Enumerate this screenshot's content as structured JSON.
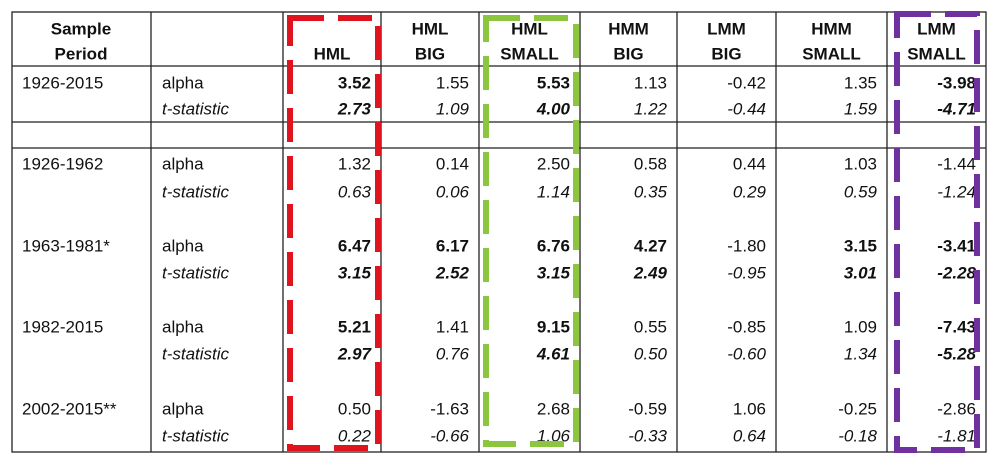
{
  "table": {
    "header": {
      "sample_period": [
        "Sample",
        "Period"
      ],
      "columns": [
        [
          "HML"
        ],
        [
          "HML",
          "BIG"
        ],
        [
          "HML",
          "SMALL"
        ],
        [
          "HMM",
          "BIG"
        ],
        [
          "LMM",
          "BIG"
        ],
        [
          "HMM",
          "SMALL"
        ],
        [
          "LMM",
          "SMALL"
        ]
      ]
    },
    "blocks": [
      {
        "period": "1926-2015",
        "rows": [
          {
            "label": "alpha",
            "values": [
              "3.52",
              "1.55",
              "5.53",
              "1.13",
              "-0.42",
              "1.35",
              "-3.98"
            ],
            "bold": [
              true,
              false,
              true,
              false,
              false,
              false,
              true
            ]
          },
          {
            "label": "t-statistic",
            "values": [
              "2.73",
              "1.09",
              "4.00",
              "1.22",
              "-0.44",
              "1.59",
              "-4.71"
            ],
            "bold": [
              true,
              false,
              true,
              false,
              false,
              false,
              true
            ]
          }
        ]
      },
      {
        "period": "1926-1962",
        "rows": [
          {
            "label": "alpha",
            "values": [
              "1.32",
              "0.14",
              "2.50",
              "0.58",
              "0.44",
              "1.03",
              "-1.44"
            ],
            "bold": [
              false,
              false,
              false,
              false,
              false,
              false,
              false
            ]
          },
          {
            "label": "t-statistic",
            "values": [
              "0.63",
              "0.06",
              "1.14",
              "0.35",
              "0.29",
              "0.59",
              "-1.24"
            ],
            "bold": [
              false,
              false,
              false,
              false,
              false,
              false,
              false
            ]
          }
        ]
      },
      {
        "period": "1963-1981*",
        "rows": [
          {
            "label": "alpha",
            "values": [
              "6.47",
              "6.17",
              "6.76",
              "4.27",
              "-1.80",
              "3.15",
              "-3.41"
            ],
            "bold": [
              true,
              true,
              true,
              true,
              false,
              true,
              true
            ]
          },
          {
            "label": "t-statistic",
            "values": [
              "3.15",
              "2.52",
              "3.15",
              "2.49",
              "-0.95",
              "3.01",
              "-2.28"
            ],
            "bold": [
              true,
              true,
              true,
              true,
              false,
              true,
              true
            ]
          }
        ]
      },
      {
        "period": "1982-2015",
        "rows": [
          {
            "label": "alpha",
            "values": [
              "5.21",
              "1.41",
              "9.15",
              "0.55",
              "-0.85",
              "1.09",
              "-7.43"
            ],
            "bold": [
              true,
              false,
              true,
              false,
              false,
              false,
              true
            ]
          },
          {
            "label": "t-statistic",
            "values": [
              "2.97",
              "0.76",
              "4.61",
              "0.50",
              "-0.60",
              "1.34",
              "-5.28"
            ],
            "bold": [
              true,
              false,
              true,
              false,
              false,
              false,
              true
            ]
          }
        ]
      },
      {
        "period": "2002-2015**",
        "rows": [
          {
            "label": "alpha",
            "values": [
              "0.50",
              "-1.63",
              "2.68",
              "-0.59",
              "1.06",
              "-0.25",
              "-2.86"
            ],
            "bold": [
              false,
              false,
              false,
              false,
              false,
              false,
              false
            ]
          },
          {
            "label": "t-statistic",
            "values": [
              "0.22",
              "-0.66",
              "1.06",
              "-0.33",
              "0.64",
              "-0.18",
              "-1.81"
            ],
            "bold": [
              false,
              false,
              false,
              false,
              false,
              false,
              false
            ]
          }
        ]
      }
    ]
  }
}
